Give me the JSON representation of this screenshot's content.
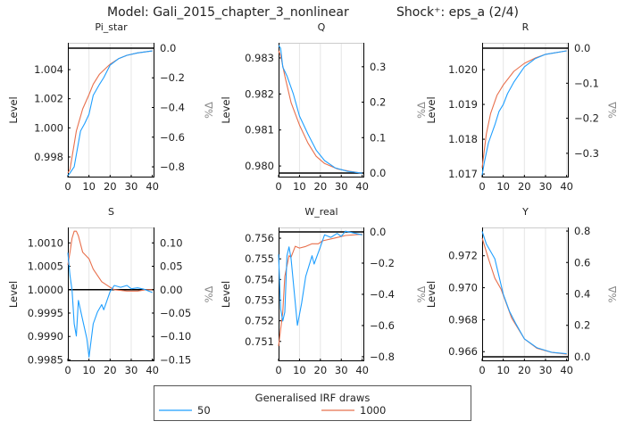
{
  "title": "Model: Gali_2015_chapter_3_nonlinear",
  "shock_label": "Shock⁺: eps_a  (2/4)",
  "colors": {
    "series_50": "#1f9fff",
    "series_1000": "#e8704d",
    "steady_state": "#000000",
    "grid": "#e6e6e6"
  },
  "legend": {
    "title": "Generalised IRF draws",
    "entries": [
      {
        "label": "50",
        "color": "#1f9fff"
      },
      {
        "label": "1000",
        "color": "#e8704d"
      }
    ],
    "placement": "bottom-center"
  },
  "chart_data": [
    {
      "type": "line",
      "title": "Pi_star",
      "ylabel": "Level",
      "ylabel_right": "%Δ",
      "xlim": [
        0,
        41
      ],
      "xticks": [
        0,
        10,
        20,
        30,
        40
      ],
      "ylim": [
        0.99659,
        1.00584
      ],
      "yticks": [
        "0.998",
        "1.000",
        "1.002",
        "1.004"
      ],
      "ylim_right": [
        -0.872,
        0.036
      ],
      "yticks_right": [
        "0.0",
        "−0.2",
        "−0.4",
        "−0.6",
        "−0.8"
      ],
      "steady_state_pct": 0,
      "series": [
        {
          "name": "50",
          "x": [
            0,
            1,
            3,
            6,
            8,
            10,
            12,
            15,
            17,
            20,
            24,
            28,
            33,
            40
          ],
          "y": [
            0.9967,
            0.9969,
            0.99733,
            0.99978,
            1.0003,
            1.00094,
            1.00223,
            1.003,
            1.00345,
            1.00431,
            1.00475,
            1.00498,
            1.00515,
            1.00528
          ]
        },
        {
          "name": "1000",
          "x": [
            0,
            1,
            4,
            7,
            10,
            12,
            15,
            18,
            20,
            24,
            28,
            33,
            40
          ],
          "y": [
            0.9969,
            0.99715,
            0.99978,
            1.0013,
            1.00229,
            1.003,
            1.00369,
            1.0041,
            1.00437,
            1.00475,
            1.00498,
            1.00515,
            1.00528
          ]
        }
      ]
    },
    {
      "type": "line",
      "title": "Q",
      "ylabel": "Level",
      "ylabel_right": "%Δ",
      "xlim": [
        0,
        41
      ],
      "xticks": [
        0,
        10,
        20,
        30,
        40
      ],
      "ylim": [
        0.97968,
        0.98342
      ],
      "yticks": [
        "0.980",
        "0.981",
        "0.982",
        "0.983"
      ],
      "ylim_right": [
        -0.0125,
        0.3675
      ],
      "yticks_right": [
        "0.0",
        "0.1",
        "0.2",
        "0.3"
      ],
      "steady_state_pct": 0,
      "series": [
        {
          "name": "50",
          "x": [
            0,
            1,
            2,
            4,
            7,
            10,
            14,
            18,
            22,
            27,
            33,
            40
          ],
          "y": [
            0.98335,
            0.98327,
            0.98275,
            0.9825,
            0.98201,
            0.98139,
            0.98089,
            0.98044,
            0.98015,
            0.97995,
            0.97985,
            0.9798
          ]
        },
        {
          "name": "1000",
          "x": [
            0,
            1,
            3,
            6,
            10,
            14,
            18,
            22,
            28,
            34,
            40
          ],
          "y": [
            0.9832,
            0.98307,
            0.9825,
            0.98176,
            0.98114,
            0.98064,
            0.98027,
            0.98007,
            0.97992,
            0.97985,
            0.9798
          ]
        }
      ]
    },
    {
      "type": "line",
      "title": "R",
      "ylabel": "Level",
      "ylabel_right": "%Δ",
      "xlim": [
        0,
        41
      ],
      "xticks": [
        0,
        10,
        20,
        30,
        40
      ],
      "ylim": [
        1.0169,
        1.02077
      ],
      "yticks": [
        "1.017",
        "1.018",
        "1.019",
        "1.020"
      ],
      "ylim_right": [
        -0.369,
        0.0153
      ],
      "yticks_right": [
        "0.0",
        "−0.1",
        "−0.2",
        "−0.3"
      ],
      "steady_state_pct": 0,
      "series": [
        {
          "name": "50",
          "x": [
            0,
            1,
            3,
            6,
            8,
            10,
            12,
            15,
            20,
            25,
            30,
            40
          ],
          "y": [
            1.01697,
            1.01733,
            1.0179,
            1.01841,
            1.0188,
            1.019,
            1.01931,
            1.01964,
            1.02008,
            1.02031,
            1.02044,
            1.02054
          ]
        },
        {
          "name": "1000",
          "x": [
            0,
            2,
            4,
            7,
            10,
            15,
            20,
            25,
            30,
            40
          ],
          "y": [
            1.01718,
            1.01815,
            1.01874,
            1.01926,
            1.01956,
            1.01995,
            1.02018,
            1.02033,
            1.02044,
            1.02054
          ]
        }
      ]
    },
    {
      "type": "line",
      "title": "S",
      "ylabel": "Level",
      "ylabel_right": "%Δ",
      "xlim": [
        0,
        41
      ],
      "xticks": [
        0,
        10,
        20,
        30,
        40
      ],
      "ylim": [
        0.99847,
        1.00133
      ],
      "yticks": [
        "0.9985",
        "0.9990",
        "0.9995",
        "1.0000",
        "1.0005",
        "1.0010"
      ],
      "ylim_right": [
        -0.153,
        0.133
      ],
      "yticks_right": [
        "−0.15",
        "−0.10",
        "−0.05",
        "0.00",
        "0.05",
        "0.10"
      ],
      "steady_state_pct": 0,
      "series": [
        {
          "name": "50",
          "x": [
            0,
            1,
            2,
            3,
            4,
            5,
            7,
            9,
            10,
            12,
            14,
            16,
            17,
            20,
            22,
            25,
            28,
            30,
            33,
            36,
            40
          ],
          "y": [
            1.00079,
            1.0003,
            0.99999,
            0.99927,
            0.99901,
            0.99977,
            0.99935,
            0.99895,
            0.99856,
            0.99927,
            0.99952,
            0.99968,
            0.99957,
            0.99996,
            1.00009,
            1.00005,
            1.00009,
            1.00002,
            1.00004,
            1.00001,
            0.99994
          ]
        },
        {
          "name": "1000",
          "x": [
            0,
            1,
            2,
            3,
            4,
            5,
            7,
            10,
            12,
            16,
            20,
            22,
            28,
            33,
            37,
            40
          ],
          "y": [
            1.00053,
            1.0008,
            1.0011,
            1.00125,
            1.00125,
            1.00115,
            1.0008,
            1.00066,
            1.00044,
            1.00017,
            1.00005,
            1.0,
            0.99997,
            0.99997,
            1.0,
            1.0
          ]
        }
      ]
    },
    {
      "type": "line",
      "title": "W_real",
      "ylabel": "Level",
      "ylabel_right": "%Δ",
      "xlim": [
        0,
        41
      ],
      "xticks": [
        0,
        10,
        20,
        30,
        40
      ],
      "ylim": [
        0.75004,
        0.75652
      ],
      "yticks": [
        "0.751",
        "0.752",
        "0.753",
        "0.754",
        "0.755",
        "0.756"
      ],
      "ylim_right": [
        -0.829,
        0.0286
      ],
      "yticks_right": [
        "0.0",
        "−0.2",
        "−0.4",
        "−0.6",
        "−0.8"
      ],
      "steady_state_pct": 0,
      "series": [
        {
          "name": "50",
          "x": [
            0,
            1,
            2,
            3,
            4,
            5,
            6,
            9,
            11,
            13,
            16,
            17,
            20,
            22,
            25,
            28,
            30,
            32,
            40
          ],
          "y": [
            0.75522,
            0.75257,
            0.75199,
            0.75242,
            0.75515,
            0.75558,
            0.75501,
            0.75178,
            0.75285,
            0.75415,
            0.75515,
            0.75475,
            0.75558,
            0.75616,
            0.75604,
            0.75623,
            0.75609,
            0.75634,
            0.75616
          ]
        },
        {
          "name": "1000",
          "x": [
            0,
            2,
            3,
            5,
            6,
            8,
            10,
            13,
            16,
            19,
            21,
            27,
            32,
            40
          ],
          "y": [
            0.75077,
            0.75242,
            0.75415,
            0.75515,
            0.75508,
            0.75561,
            0.75552,
            0.7556,
            0.75573,
            0.75573,
            0.75587,
            0.75601,
            0.75613,
            0.75619
          ]
        }
      ]
    },
    {
      "type": "line",
      "title": "Y",
      "ylabel": "Level",
      "ylabel_right": "%Δ",
      "xlim": [
        0,
        41
      ],
      "xticks": [
        0,
        10,
        20,
        30,
        40
      ],
      "ylim": [
        0.9654,
        0.97377
      ],
      "yticks": [
        "0.966",
        "0.968",
        "0.970",
        "0.972"
      ],
      "ylim_right": [
        -0.0286,
        0.8229
      ],
      "yticks_right": [
        "0.0",
        "0.2",
        "0.4",
        "0.6",
        "0.8"
      ],
      "steady_state_pct": 0,
      "series": [
        {
          "name": "50",
          "x": [
            0,
            2,
            6,
            10,
            13,
            16,
            20,
            26,
            33,
            40
          ],
          "y": [
            0.97353,
            0.97274,
            0.97181,
            0.96959,
            0.9685,
            0.96773,
            0.9668,
            0.96624,
            0.96596,
            0.96587
          ]
        },
        {
          "name": "1000",
          "x": [
            0,
            3,
            6,
            9,
            14,
            20,
            26,
            33,
            40
          ],
          "y": [
            0.97311,
            0.97181,
            0.9706,
            0.9699,
            0.9681,
            0.9668,
            0.96621,
            0.96595,
            0.96584
          ]
        }
      ]
    }
  ]
}
